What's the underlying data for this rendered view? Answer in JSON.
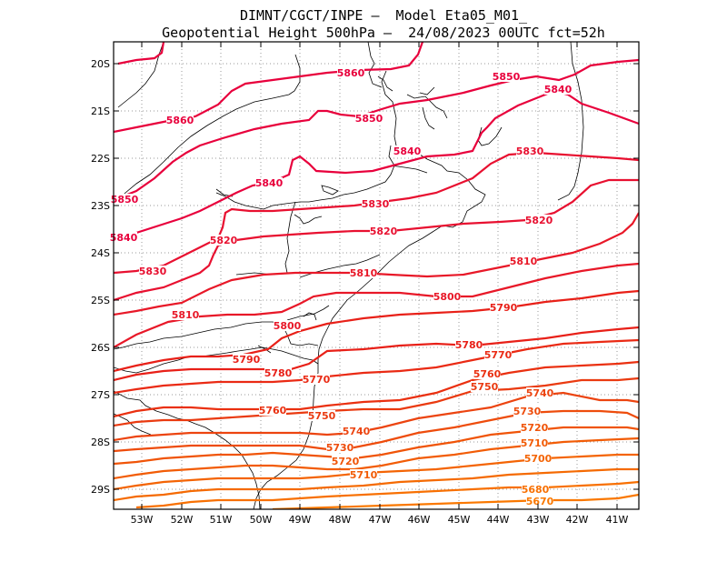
{
  "header": {
    "line1": "DIMNT/CGCT/INPE –  Model Eta05_M01_",
    "line2": "Geopotential Height 500hPa –  24/08/2023 00UTC fct=52h"
  },
  "axes": {
    "lat_labels": [
      "20S",
      "21S",
      "22S",
      "23S",
      "24S",
      "25S",
      "26S",
      "27S",
      "28S",
      "29S"
    ],
    "lon_labels": [
      "53W",
      "52W",
      "51W",
      "50W",
      "49W",
      "48W",
      "47W",
      "46W",
      "45W",
      "44W",
      "43W",
      "42W",
      "41W"
    ]
  },
  "colors": {
    "high": "#e0004a",
    "mid": "#e82010",
    "low": "#ff6a00",
    "coast": "#000000",
    "grid": "#9a9a9a"
  },
  "contours": [
    {
      "value": "5860",
      "color": "#e8003c",
      "labels": [
        "5860",
        "5860"
      ]
    },
    {
      "value": "5850",
      "color": "#e8003c",
      "labels": [
        "5850",
        "5850",
        "5850"
      ]
    },
    {
      "value": "5840",
      "color": "#e8003c",
      "labels": [
        "5840",
        "5840",
        "5840",
        "5840"
      ]
    },
    {
      "value": "5830",
      "color": "#e81030",
      "labels": [
        "5830",
        "5830",
        "5830"
      ]
    },
    {
      "value": "5820",
      "color": "#e81030",
      "labels": [
        "5820",
        "5820",
        "5820"
      ]
    },
    {
      "value": "5810",
      "color": "#e81828",
      "labels": [
        "5810",
        "5810",
        "5810"
      ]
    },
    {
      "value": "5800",
      "color": "#e81828",
      "labels": [
        "5800",
        "5800"
      ]
    },
    {
      "value": "5790",
      "color": "#e82018",
      "labels": [
        "5790",
        "5790"
      ]
    },
    {
      "value": "5780",
      "color": "#e82018",
      "labels": [
        "5780",
        "5780"
      ]
    },
    {
      "value": "5770",
      "color": "#ea2a14",
      "labels": [
        "5770",
        "5770"
      ]
    },
    {
      "value": "5760",
      "color": "#ea3010",
      "labels": [
        "5760",
        "5760"
      ]
    },
    {
      "value": "5750",
      "color": "#ea3a10",
      "labels": [
        "5750",
        "5750"
      ]
    },
    {
      "value": "5740",
      "color": "#ec4410",
      "labels": [
        "5740",
        "5740"
      ]
    },
    {
      "value": "5730",
      "color": "#ee4c0c",
      "labels": [
        "5730",
        "5730"
      ]
    },
    {
      "value": "5720",
      "color": "#f05408",
      "labels": [
        "5720",
        "5720"
      ]
    },
    {
      "value": "5710",
      "color": "#f25c06",
      "labels": [
        "5710",
        "5710"
      ]
    },
    {
      "value": "5700",
      "color": "#f46404",
      "labels": [
        "5700"
      ]
    },
    {
      "value": "5680",
      "color": "#f87002",
      "labels": [
        "5680"
      ]
    },
    {
      "value": "5670",
      "color": "#fa7800",
      "labels": [
        "5670"
      ]
    }
  ]
}
